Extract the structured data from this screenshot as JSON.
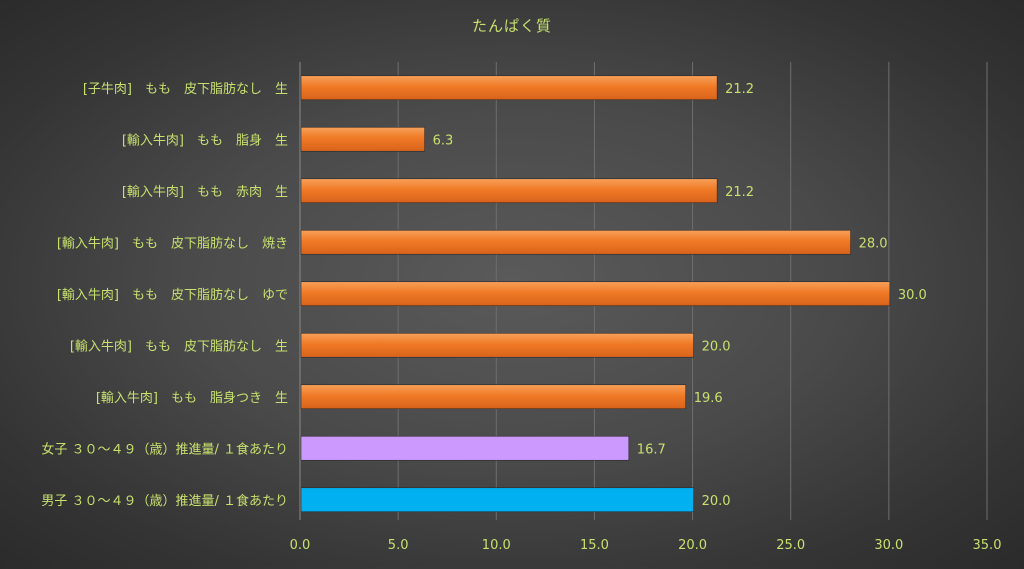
{
  "chart_data": {
    "type": "bar",
    "orientation": "horizontal",
    "title": "たんぱく質",
    "xlabel": "",
    "ylabel": "",
    "xlim": [
      0,
      35
    ],
    "xticks": [
      0,
      5,
      10,
      15,
      20,
      25,
      30,
      35
    ],
    "xtick_labels": [
      "0.0",
      "5.0",
      "10.0",
      "15.0",
      "20.0",
      "25.0",
      "30.0",
      "35.0"
    ],
    "grid": "vertical",
    "legend": "none",
    "categories": [
      "[子牛肉]　もも　皮下脂肪なし　生",
      "[輸入牛肉]　もも　脂身　生",
      "[輸入牛肉]　もも　赤肉　生",
      "[輸入牛肉]　もも　皮下脂肪なし　焼き",
      "[輸入牛肉]　もも　皮下脂肪なし　ゆで",
      "[輸入牛肉]　もも　皮下脂肪なし　生",
      "[輸入牛肉]　もも　脂身つき　生",
      "女子 ３０～４９（歳）推進量/ １食あたり",
      "男子 ３０～４９（歳）推進量/ １食あたり"
    ],
    "values": [
      21.2,
      6.3,
      21.2,
      28.0,
      30.0,
      20.0,
      19.6,
      16.7,
      20.0
    ],
    "value_labels": [
      "21.2",
      "6.3",
      "21.2",
      "28.0",
      "30.0",
      "20.0",
      "19.6",
      "16.7",
      "20.0"
    ],
    "bar_colors": [
      "#f07a26",
      "#f07a26",
      "#f07a26",
      "#f07a26",
      "#f07a26",
      "#f07a26",
      "#f07a26",
      "#cc9aff",
      "#00b0f0"
    ]
  },
  "colors": {
    "text": "#c7e06e",
    "grid": "#6e6e6e",
    "axis": "#8a8a8a"
  }
}
